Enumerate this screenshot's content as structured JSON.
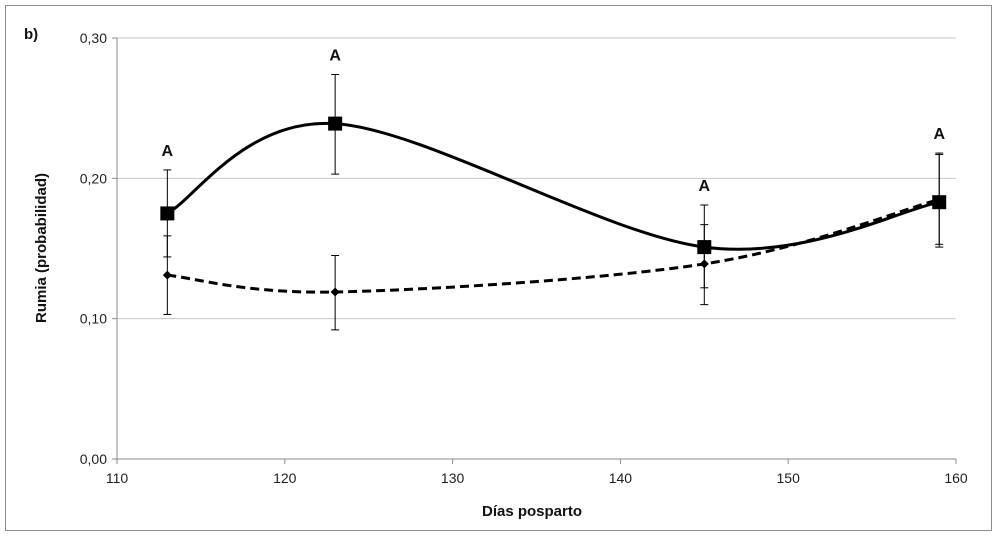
{
  "chart_data": {
    "type": "line",
    "panel_label": "b)",
    "xlabel": "Días posparto",
    "ylabel": "Rumia (probabilidad)",
    "xlim": [
      110,
      160
    ],
    "ylim": [
      0.0,
      0.3
    ],
    "x_ticks": [
      110,
      120,
      130,
      140,
      150,
      160
    ],
    "x_tick_labels": [
      "110",
      "120",
      "130",
      "140",
      "150",
      "160"
    ],
    "y_ticks": [
      0.0,
      0.1,
      0.2,
      0.3
    ],
    "y_tick_labels": [
      "0,00",
      "0,10",
      "0,20",
      "0,30"
    ],
    "grid": "horizontal",
    "legend": "none",
    "series": [
      {
        "line_style": "solid",
        "marker": "square",
        "color": "#000000",
        "x": [
          113,
          123,
          145,
          159
        ],
        "y": [
          0.175,
          0.239,
          0.151,
          0.183
        ],
        "err_upper": [
          0.206,
          0.274,
          0.181,
          0.217
        ],
        "err_lower": [
          0.144,
          0.203,
          0.122,
          0.151
        ]
      },
      {
        "line_style": "dashed",
        "marker": "diamond",
        "color": "#000000",
        "x": [
          113,
          123,
          145,
          159
        ],
        "y": [
          0.131,
          0.119,
          0.139,
          0.185
        ],
        "err_upper": [
          0.159,
          0.145,
          0.167,
          0.218
        ],
        "err_lower": [
          0.103,
          0.092,
          0.11,
          0.153
        ]
      }
    ],
    "annotations": [
      {
        "text": "A",
        "x": 113,
        "y": 0.206
      },
      {
        "text": "A",
        "x": 123,
        "y": 0.274
      },
      {
        "text": "A",
        "x": 145,
        "y": 0.181
      },
      {
        "text": "A",
        "x": 159,
        "y": 0.218
      }
    ]
  }
}
